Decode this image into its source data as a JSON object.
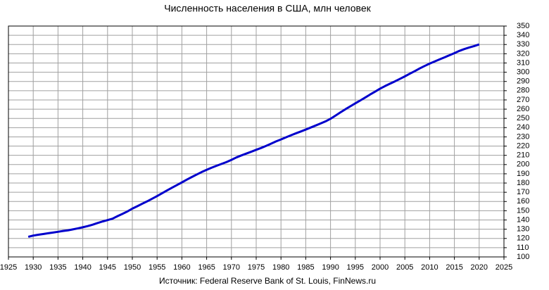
{
  "chart_data": {
    "type": "line",
    "title": "Численность населения в США, млн человек",
    "source": "Источник: Federal Reserve Bank of St. Louis, FinNews.ru",
    "x": [
      1929,
      1930,
      1931,
      1932,
      1933,
      1934,
      1935,
      1936,
      1937,
      1938,
      1939,
      1940,
      1941,
      1942,
      1943,
      1944,
      1945,
      1946,
      1947,
      1948,
      1949,
      1950,
      1951,
      1952,
      1953,
      1954,
      1955,
      1956,
      1957,
      1958,
      1959,
      1960,
      1961,
      1962,
      1963,
      1964,
      1965,
      1966,
      1967,
      1968,
      1969,
      1970,
      1971,
      1972,
      1973,
      1974,
      1975,
      1976,
      1977,
      1978,
      1979,
      1980,
      1981,
      1982,
      1983,
      1984,
      1985,
      1986,
      1987,
      1988,
      1989,
      1990,
      1991,
      1992,
      1993,
      1994,
      1995,
      1996,
      1997,
      1998,
      1999,
      2000,
      2001,
      2002,
      2003,
      2004,
      2005,
      2006,
      2007,
      2008,
      2009,
      2010,
      2011,
      2012,
      2013,
      2014,
      2015,
      2016,
      2017,
      2018,
      2019,
      2020
    ],
    "series": [
      {
        "color": "#0000cc",
        "values": [
          121.8,
          123.1,
          124.0,
          124.8,
          125.6,
          126.4,
          127.2,
          128.1,
          128.8,
          129.8,
          130.9,
          132.1,
          133.4,
          134.9,
          136.7,
          138.4,
          139.9,
          141.4,
          144.1,
          146.6,
          149.2,
          152.3,
          154.9,
          157.6,
          160.2,
          163.0,
          165.9,
          168.9,
          172.0,
          174.9,
          177.8,
          180.7,
          183.7,
          186.5,
          189.2,
          191.9,
          194.3,
          196.6,
          198.7,
          200.7,
          202.7,
          205.1,
          207.7,
          209.9,
          211.9,
          213.9,
          216.0,
          218.0,
          220.2,
          222.6,
          225.1,
          227.2,
          229.5,
          231.7,
          233.8,
          235.8,
          237.9,
          240.1,
          242.3,
          244.5,
          246.8,
          249.6,
          253.0,
          256.5,
          259.9,
          263.1,
          266.3,
          269.4,
          272.6,
          275.9,
          279.0,
          282.2,
          285.0,
          287.6,
          290.1,
          292.8,
          295.5,
          298.4,
          301.2,
          304.1,
          306.8,
          309.3,
          311.6,
          313.9,
          316.1,
          318.4,
          320.7,
          323.1,
          325.1,
          326.8,
          328.3,
          330.1
        ]
      }
    ],
    "xlim": [
      1925,
      2025
    ],
    "xticks": [
      1925,
      1930,
      1935,
      1940,
      1945,
      1950,
      1955,
      1960,
      1965,
      1970,
      1975,
      1980,
      1985,
      1990,
      1995,
      2000,
      2005,
      2010,
      2015,
      2020,
      2025
    ],
    "ylim": [
      100,
      350
    ],
    "yticks": [
      100,
      110,
      120,
      130,
      140,
      150,
      160,
      170,
      180,
      190,
      200,
      210,
      220,
      230,
      240,
      250,
      260,
      270,
      280,
      290,
      300,
      310,
      320,
      330,
      340,
      350
    ],
    "grid": true
  }
}
